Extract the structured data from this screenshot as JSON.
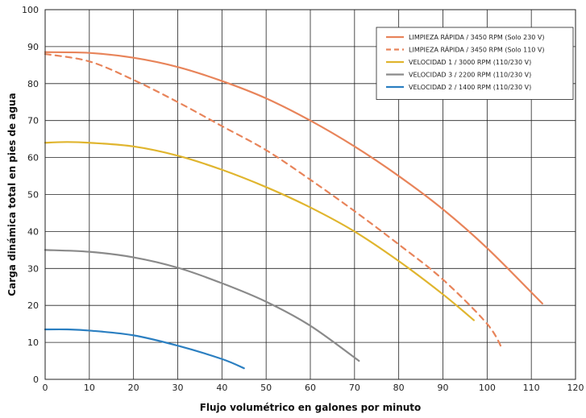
{
  "chart_data": {
    "type": "line",
    "xlabel": "Flujo volumétrico en galones por minuto",
    "ylabel": "Carga dinámica total en pies de agua",
    "xlim": [
      0,
      120
    ],
    "ylim": [
      0,
      100
    ],
    "x_ticks": [
      0,
      10,
      20,
      30,
      40,
      50,
      60,
      70,
      80,
      90,
      100,
      110,
      120
    ],
    "y_ticks": [
      0,
      10,
      20,
      30,
      40,
      50,
      60,
      70,
      80,
      90,
      100
    ],
    "grid": true,
    "legend_position": "top-right",
    "series": [
      {
        "name": "LIMPIEZA RÁPIDA / 3450 RPM (Solo 230 V)",
        "color": "#e8845a",
        "dashed": false,
        "points": [
          [
            0,
            88.5
          ],
          [
            10,
            88.3
          ],
          [
            20,
            87
          ],
          [
            30,
            84.5
          ],
          [
            40,
            80.7
          ],
          [
            50,
            76
          ],
          [
            60,
            70
          ],
          [
            70,
            63
          ],
          [
            80,
            55
          ],
          [
            90,
            46
          ],
          [
            100,
            35.5
          ],
          [
            112.5,
            20.5
          ]
        ]
      },
      {
        "name": "LIMPIEZA RÁPIDA / 3450 RPM (Solo 110 V)",
        "color": "#e8845a",
        "dashed": true,
        "points": [
          [
            0,
            88
          ],
          [
            10,
            86
          ],
          [
            20,
            81
          ],
          [
            30,
            75
          ],
          [
            40,
            68.5
          ],
          [
            50,
            62
          ],
          [
            60,
            54
          ],
          [
            70,
            45.5
          ],
          [
            80,
            36.5
          ],
          [
            90,
            27
          ],
          [
            100,
            15
          ],
          [
            103.5,
            8
          ]
        ]
      },
      {
        "name": "VELOCIDAD 1 / 3000 RPM (110/230 V)",
        "color": "#e0b52e",
        "dashed": false,
        "points": [
          [
            0,
            64
          ],
          [
            5,
            64.2
          ],
          [
            10,
            64
          ],
          [
            20,
            63
          ],
          [
            30,
            60.5
          ],
          [
            40,
            56.7
          ],
          [
            50,
            52
          ],
          [
            60,
            46.5
          ],
          [
            70,
            40
          ],
          [
            80,
            32
          ],
          [
            90,
            23
          ],
          [
            97,
            16
          ]
        ]
      },
      {
        "name": "VELOCIDAD 3 / 2200 RPM (110/230 V)",
        "color": "#8a8a8a",
        "dashed": false,
        "points": [
          [
            0,
            35
          ],
          [
            10,
            34.5
          ],
          [
            20,
            33
          ],
          [
            30,
            30.2
          ],
          [
            40,
            26
          ],
          [
            50,
            21
          ],
          [
            60,
            14.5
          ],
          [
            71,
            5
          ]
        ]
      },
      {
        "name": "VELOCIDAD 2 / 1400 RPM (110/230 V)",
        "color": "#2b7fc1",
        "dashed": false,
        "points": [
          [
            0,
            13.5
          ],
          [
            5,
            13.5
          ],
          [
            10,
            13.2
          ],
          [
            20,
            11.9
          ],
          [
            30,
            9.1
          ],
          [
            40,
            5.5
          ],
          [
            45,
            3
          ]
        ]
      }
    ]
  }
}
